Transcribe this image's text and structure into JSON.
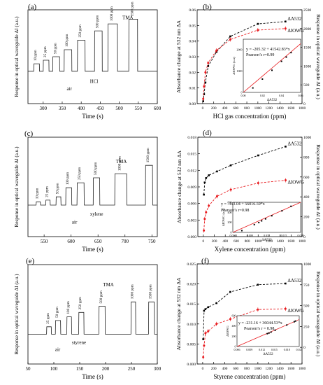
{
  "panels": [
    {
      "id": "a",
      "panel_label": "(a)",
      "type": "line",
      "xlabel": "Time (s)",
      "ylabel": "Response in optical waveguide ΔI (a.u.)",
      "xlim": [
        260,
        600
      ],
      "xticks": [
        "300",
        "350",
        "400",
        "450",
        "500",
        "550",
        "600"
      ],
      "ylim": [
        1000,
        5000
      ],
      "yticks": [],
      "baseline": 2380,
      "pulses": [
        {
          "start": 275,
          "end": 290,
          "plateau": 2700,
          "label": "10 ppm"
        },
        {
          "start": 300,
          "end": 315,
          "plateau": 2850,
          "label": "25 ppm"
        },
        {
          "start": 325,
          "end": 343,
          "plateau": 3000,
          "label": "50 ppm"
        },
        {
          "start": 355,
          "end": 375,
          "plateau": 3300,
          "label": "100 ppm"
        },
        {
          "start": 390,
          "end": 410,
          "plateau": 3700,
          "label": "250 ppm"
        },
        {
          "start": 435,
          "end": 455,
          "plateau": 4100,
          "label": "500 ppm"
        },
        {
          "start": 470,
          "end": 495,
          "plateau": 4400,
          "label": "1000 ppm"
        },
        {
          "start": 525,
          "end": 548,
          "plateau": 4600,
          "label": "1500 ppm"
        }
      ],
      "annotations": [
        "air",
        "HCl",
        "TMA"
      ]
    },
    {
      "id": "b",
      "panel_label": "(b)",
      "type": "scatter",
      "xlabel": "HCl gas concentration (ppm)",
      "ylabel": "Absorbance change at 532 nm ΔA",
      "ylabel_right": "Response in optical waveguide ΔI (a.u.)",
      "xlim": [
        -100,
        1800
      ],
      "xticks": [
        "0",
        "200",
        "400",
        "600",
        "800",
        "1000",
        "1200",
        "1400",
        "1600",
        "1800"
      ],
      "ylim": [
        0.0,
        0.06
      ],
      "yticks": [
        "0.00",
        "0.01",
        "0.02",
        "0.03",
        "0.04",
        "0.05",
        "0.06"
      ],
      "ylim_right": [
        0,
        2500
      ],
      "yticks_right": [
        "0",
        "500",
        "1000",
        "1500",
        "2000",
        "2500"
      ],
      "series": [
        {
          "name": "ΔA532",
          "color": "#000000",
          "x": [
            10,
            25,
            50,
            100,
            250,
            500,
            1000,
            1500
          ],
          "y": [
            0.0015,
            0.006,
            0.0135,
            0.024,
            0.033,
            0.043,
            0.051,
            0.0525
          ]
        },
        {
          "name": "ΔIOWG",
          "color": "#e8191d",
          "x": [
            10,
            25,
            50,
            100,
            250,
            500,
            1000,
            1500
          ],
          "y": [
            0.003,
            0.011,
            0.02,
            0.026,
            0.034,
            0.041,
            0.047,
            0.048
          ]
        }
      ],
      "inset": {
        "xlabel": "ΔA532",
        "ylabel": "ΔIOWG (a.u)",
        "xlim": [
          0.0,
          0.06
        ],
        "xticks": [
          "0.00",
          "0.02",
          "0.04",
          "0.06"
        ],
        "ylim": [
          0,
          2500
        ],
        "yticks": [
          "0",
          "1000",
          "2000"
        ],
        "points": {
          "x": [
            0.01,
            0.02,
            0.03,
            0.04,
            0.045,
            0.05
          ],
          "y": [
            210,
            625,
            1040,
            1460,
            1660,
            1870
          ]
        },
        "fit": {
          "slope": 41542.83,
          "intercept": -205.32
        },
        "equation": "y = -205.32 + 41542.83*x",
        "pearson": "Pearson’s r=0.99"
      }
    },
    {
      "id": "c",
      "panel_label": "(c)",
      "type": "line",
      "xlabel": "Time (s)",
      "ylabel": "Response in optical waveguide ΔI (a.u.)",
      "xlim": [
        520,
        760
      ],
      "xticks": [
        "550",
        "600",
        "650",
        "700",
        "750"
      ],
      "ylim": [
        2000,
        3200
      ],
      "yticks": [],
      "baseline": 2380,
      "pulses": [
        {
          "start": 535,
          "end": 543,
          "plateau": 2420,
          "label": "10 ppm"
        },
        {
          "start": 553,
          "end": 561,
          "plateau": 2440,
          "label": "25 ppm"
        },
        {
          "start": 572,
          "end": 581,
          "plateau": 2480,
          "label": "50 ppm"
        },
        {
          "start": 590,
          "end": 601,
          "plateau": 2590,
          "label": "100 ppm"
        },
        {
          "start": 611,
          "end": 624,
          "plateau": 2650,
          "label": "250 ppm"
        },
        {
          "start": 641,
          "end": 653,
          "plateau": 2710,
          "label": "500 ppm"
        },
        {
          "start": 681,
          "end": 703,
          "plateau": 2760,
          "label": "1000 ppm"
        },
        {
          "start": 738,
          "end": 751,
          "plateau": 2860,
          "label": "1500 ppm"
        }
      ],
      "annotations": [
        "air",
        "xylene",
        "TMA"
      ]
    },
    {
      "id": "d",
      "panel_label": "(d)",
      "type": "scatter",
      "xlabel": "Xylene concentration (ppm)",
      "ylabel": "Absorbance change at 532 nm ΔA",
      "ylabel_right": "Response in optical waveguide ΔI (a.u.)",
      "xlim": [
        -100,
        1800
      ],
      "xticks": [
        "0",
        "200",
        "400",
        "600",
        "800",
        "1000",
        "1200",
        "1400",
        "1600",
        "1800"
      ],
      "ylim": [
        0.0,
        0.018
      ],
      "yticks": [
        "0.000",
        "0.003",
        "0.006",
        "0.009",
        "0.012",
        "0.015",
        "0.018"
      ],
      "ylim_right": [
        0,
        1000
      ],
      "yticks_right": [
        "0",
        "200",
        "400",
        "600",
        "800",
        "1000"
      ],
      "series": [
        {
          "name": "ΔA532",
          "color": "#000000",
          "x": [
            10,
            25,
            50,
            100,
            250,
            500,
            1000,
            1500
          ],
          "y": [
            0.0076,
            0.0098,
            0.0106,
            0.0111,
            0.0118,
            0.0129,
            0.0147,
            0.0163
          ]
        },
        {
          "name": "ΔIOWG",
          "color": "#e8191d",
          "x": [
            10,
            25,
            50,
            100,
            250,
            500,
            1000,
            1500
          ],
          "y": [
            0.0011,
            0.0032,
            0.0044,
            0.0056,
            0.0073,
            0.0085,
            0.0097,
            0.0102
          ]
        }
      ],
      "inset": {
        "xlabel": "ΔA532",
        "ylabel": "ΔIOWG (a.u)",
        "xlim": [
          0.006,
          0.018
        ],
        "xticks": [
          "0.006",
          "0.009",
          "0.012",
          "0.015",
          "0.018"
        ],
        "ylim": [
          0,
          600
        ],
        "yticks": [
          "0",
          "200",
          "400",
          "600"
        ],
        "points": {
          "x": [
            0.0076,
            0.0098,
            0.0106,
            0.0111,
            0.0118,
            0.0129,
            0.0147,
            0.0163
          ],
          "y": [
            35,
            155,
            196,
            230,
            270,
            332,
            430,
            520
          ]
        },
        "fit": {
          "slope": 56016.59,
          "intercept": -393.04
        },
        "equation": "y = -393.04 + 56016.59*x",
        "pearson": "Pearson’s r=0.98"
      }
    },
    {
      "id": "e",
      "panel_label": "(e)",
      "type": "line",
      "xlabel": "Time (s)",
      "ylabel": "Response in optical waveguide ΔI (a.u.)",
      "xlim": [
        50,
        300
      ],
      "xticks": [
        "50",
        "100",
        "150",
        "200",
        "250",
        "300"
      ],
      "ylim": [
        2000,
        3600
      ],
      "yticks": [],
      "baseline": 2480,
      "pulses": [
        {
          "start": 86,
          "end": 95,
          "plateau": 2600,
          "label": "25 ppm"
        },
        {
          "start": 103,
          "end": 113,
          "plateau": 2700,
          "label": "50 ppm"
        },
        {
          "start": 125,
          "end": 134,
          "plateau": 2760,
          "label": "100 ppm"
        },
        {
          "start": 148,
          "end": 158,
          "plateau": 2830,
          "label": "250 ppm"
        },
        {
          "start": 187,
          "end": 199,
          "plateau": 2930,
          "label": "500 ppm"
        },
        {
          "start": 249,
          "end": 258,
          "plateau": 3000,
          "label": "1000 ppm"
        },
        {
          "start": 283,
          "end": 294,
          "plateau": 3000,
          "label": "1500 ppm"
        }
      ],
      "annotations": [
        "air",
        "styrene",
        "TMA"
      ]
    },
    {
      "id": "f",
      "panel_label": "(f)",
      "type": "scatter",
      "xlabel": "Styrene concentration (ppm)",
      "ylabel": "Absorbance change at 532 nm ΔA",
      "ylabel_right": "Response in optical waveguide ΔI (a.u.)",
      "xlim": [
        -100,
        1800
      ],
      "xticks": [
        "0",
        "200",
        "400",
        "600",
        "800",
        "1000",
        "1200",
        "1400",
        "1600",
        "1800"
      ],
      "ylim": [
        0.0,
        0.025
      ],
      "yticks": [
        "0.000",
        "0.005",
        "0.010",
        "0.015",
        "0.020",
        "0.025"
      ],
      "ylim_right": [
        -200,
        1000
      ],
      "yticks_right": [
        "0",
        "250",
        "500",
        "750",
        "1000"
      ],
      "series": [
        {
          "name": "ΔA532",
          "color": "#000000",
          "x": [
            10,
            25,
            50,
            100,
            250,
            500,
            1000,
            1500
          ],
          "y": [
            0.0062,
            0.0133,
            0.0137,
            0.0142,
            0.0152,
            0.018,
            0.0198,
            0.0201
          ]
        },
        {
          "name": "ΔIOWG",
          "color": "#e8191d",
          "x": [
            10,
            25,
            50,
            100,
            250,
            500,
            1000,
            1500
          ],
          "y": [
            0.0017,
            0.0046,
            0.0077,
            0.0082,
            0.01,
            0.0112,
            0.0136,
            0.0138
          ]
        }
      ],
      "inset": {
        "xlabel": "ΔA532",
        "ylabel": "ΔIOWG",
        "xlim": [
          0.006,
          0.021
        ],
        "xticks": [
          "0.006",
          "0.009",
          "0.012",
          "0.015",
          "0.018",
          "0.021"
        ],
        "ylim": [
          0,
          600
        ],
        "yticks": [
          "0",
          "200",
          "400",
          "600"
        ],
        "points": {
          "x": [
            0.0133,
            0.0137,
            0.0142,
            0.0152,
            0.018,
            0.0198,
            0.0201
          ],
          "y": [
            250,
            262,
            280,
            317,
            418,
            482,
            495
          ]
        },
        "fit": {
          "slope": 36044.53,
          "intercept": -231.16
        },
        "equation": "y = -231.16 + 36044.53*x",
        "pearson": "Pearson’s  r = 0.98"
      }
    }
  ],
  "chart_data": [
    {
      "panel": "(a)",
      "type": "line",
      "xlabel": "Time (s)",
      "ylabel": "Response in optical waveguide ΔI (a.u.)",
      "xlim": [
        260,
        600
      ],
      "series_labels": [
        "10 ppm",
        "25 ppm",
        "50 ppm",
        "100 ppm",
        "250 ppm",
        "500 ppm",
        "1000 ppm",
        "1500 ppm"
      ]
    },
    {
      "panel": "(b)",
      "type": "scatter",
      "xlabel": "HCl gas concentration (ppm)",
      "ylabel": "Absorbance change at 532 nm ΔA",
      "x": [
        10,
        25,
        50,
        100,
        250,
        500,
        1000,
        1500
      ],
      "series": [
        {
          "name": "ΔA532",
          "values": [
            0.0015,
            0.006,
            0.0135,
            0.024,
            0.033,
            0.043,
            0.051,
            0.0525
          ]
        },
        {
          "name": "ΔIOWG",
          "values": [
            0.003,
            0.011,
            0.02,
            0.026,
            0.034,
            0.041,
            0.047,
            0.048
          ]
        }
      ]
    },
    {
      "panel": "(c)",
      "type": "line",
      "xlabel": "Time (s)",
      "ylabel": "Response in optical waveguide ΔI (a.u.)",
      "xlim": [
        520,
        760
      ]
    },
    {
      "panel": "(d)",
      "type": "scatter",
      "xlabel": "Xylene concentration (ppm)",
      "ylabel": "Absorbance change at 532 nm ΔA",
      "x": [
        10,
        25,
        50,
        100,
        250,
        500,
        1000,
        1500
      ],
      "series": [
        {
          "name": "ΔA532",
          "values": [
            0.0076,
            0.0098,
            0.0106,
            0.0111,
            0.0118,
            0.0129,
            0.0147,
            0.0163
          ]
        },
        {
          "name": "ΔIOWG",
          "values": [
            0.0011,
            0.0032,
            0.0044,
            0.0056,
            0.0073,
            0.0085,
            0.0097,
            0.0102
          ]
        }
      ]
    },
    {
      "panel": "(e)",
      "type": "line",
      "xlabel": "Time (s)",
      "ylabel": "Response in optical waveguide ΔI (a.u.)",
      "xlim": [
        50,
        300
      ]
    },
    {
      "panel": "(f)",
      "type": "scatter",
      "xlabel": "Styrene concentration (ppm)",
      "ylabel": "Absorbance change at 532 nm ΔA",
      "x": [
        10,
        25,
        50,
        100,
        250,
        500,
        1000,
        1500
      ],
      "series": [
        {
          "name": "ΔA532",
          "values": [
            0.0062,
            0.0133,
            0.0137,
            0.0142,
            0.0152,
            0.018,
            0.0198,
            0.0201
          ]
        },
        {
          "name": "ΔIOWG",
          "values": [
            0.0017,
            0.0046,
            0.0077,
            0.0082,
            0.01,
            0.0112,
            0.0136,
            0.0138
          ]
        }
      ]
    }
  ]
}
